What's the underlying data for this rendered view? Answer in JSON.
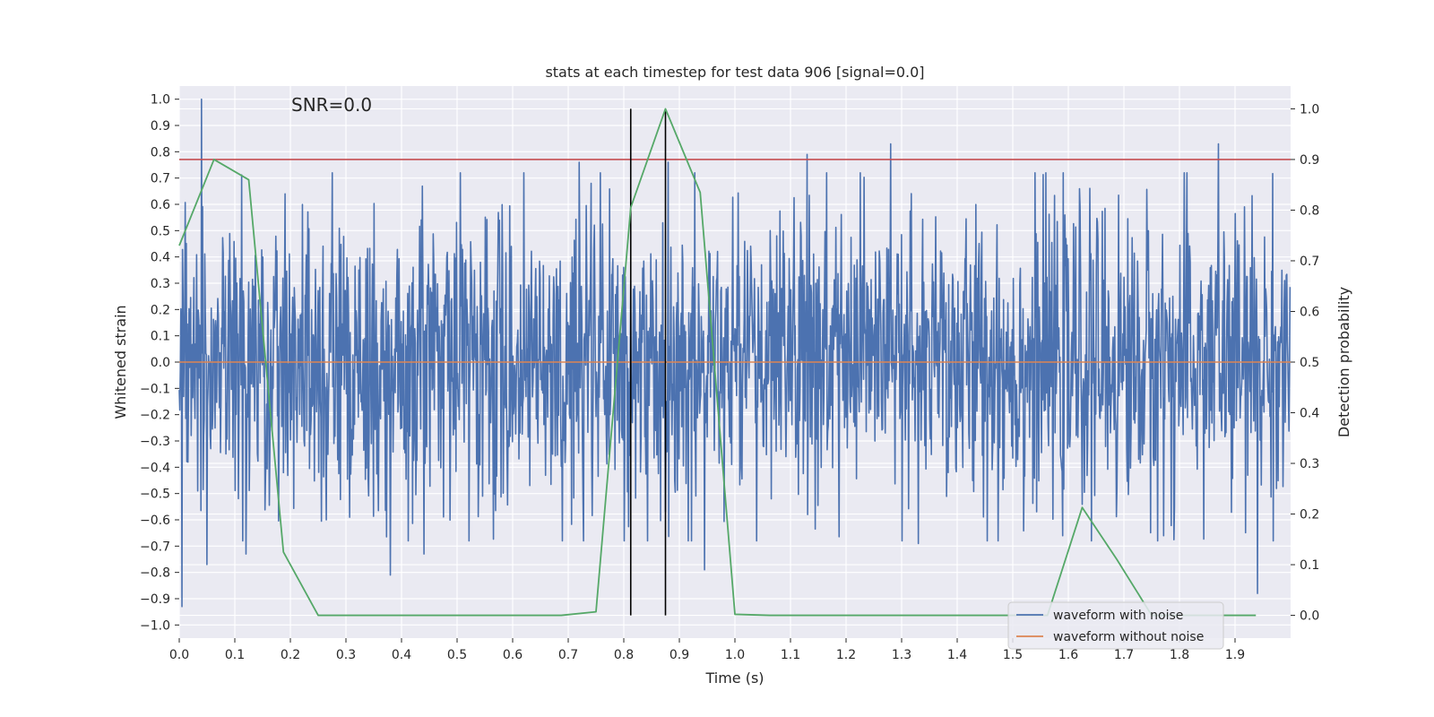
{
  "chart_data": {
    "type": "line",
    "title": "stats at each timestep for test data 906 [signal=0.0]",
    "annotation": "SNR=0.0",
    "xlabel": "Time (s)",
    "ylabel_left": "Whitened strain",
    "ylabel_right": "Detection probability",
    "xlim": [
      0.0,
      2.0
    ],
    "ylim_left": [
      -1.05,
      1.05
    ],
    "ylim_right": [
      -0.045,
      1.045
    ],
    "x_ticks": [
      "0.0",
      "0.1",
      "0.2",
      "0.3",
      "0.4",
      "0.5",
      "0.6",
      "0.7",
      "0.8",
      "0.9",
      "1.0",
      "1.1",
      "1.2",
      "1.3",
      "1.4",
      "1.5",
      "1.6",
      "1.7",
      "1.8",
      "1.9"
    ],
    "left_ticks": [
      "1.0",
      "0.9",
      "0.8",
      "0.7",
      "0.6",
      "0.5",
      "0.4",
      "0.3",
      "0.2",
      "0.1",
      "0.0",
      "−0.1",
      "−0.2",
      "−0.3",
      "−0.4",
      "−0.5",
      "−0.6",
      "−0.7",
      "−0.8",
      "−0.9",
      "−1.0"
    ],
    "right_ticks": [
      "1.0",
      "0.9",
      "0.8",
      "0.7",
      "0.6",
      "0.5",
      "0.4",
      "0.3",
      "0.2",
      "0.1",
      "0.0"
    ],
    "grid": true,
    "legend_position": "bottom-right",
    "series": [
      {
        "name": "waveform with noise",
        "color": "#4c72b0",
        "axis": "left",
        "style": "noise",
        "samples": 2048,
        "amplitude_std": 0.28,
        "peaks": [
          [
            0.04,
            1.0
          ],
          [
            0.005,
            -0.93
          ],
          [
            0.05,
            -0.77
          ],
          [
            0.12,
            -0.73
          ],
          [
            0.19,
            0.64
          ],
          [
            0.38,
            -0.81
          ],
          [
            0.44,
            -0.73
          ],
          [
            0.72,
            0.76
          ],
          [
            0.88,
            0.76
          ],
          [
            0.945,
            -0.79
          ],
          [
            1.13,
            0.79
          ],
          [
            1.28,
            0.83
          ],
          [
            1.33,
            -0.69
          ],
          [
            1.87,
            0.83
          ],
          [
            1.94,
            -0.88
          ]
        ]
      },
      {
        "name": "waveform without noise",
        "color": "#dd8452",
        "axis": "left",
        "values": [
          0.0,
          0.0
        ]
      },
      {
        "name": "",
        "color": "#55a868",
        "axis": "right",
        "x": [
          0.0,
          0.0625,
          0.125,
          0.1875,
          0.25,
          0.3125,
          0.375,
          0.4375,
          0.5,
          0.5625,
          0.625,
          0.6875,
          0.75,
          0.8125,
          0.875,
          0.9375,
          1.0,
          1.0625,
          1.125,
          1.1875,
          1.25,
          1.3125,
          1.375,
          1.4375,
          1.5,
          1.5625,
          1.625,
          1.6875,
          1.75,
          1.8125,
          1.875,
          1.9375
        ],
        "values": [
          0.73,
          0.9,
          0.86,
          0.125,
          0.0,
          0.0,
          0.0,
          0.0,
          0.0,
          0.0,
          0.0,
          0.0,
          0.007,
          0.805,
          1.0,
          0.835,
          0.002,
          0.0,
          0.0,
          0.0,
          0.0,
          0.0,
          0.0,
          0.0,
          0.0,
          0.0,
          0.213,
          0.11,
          0.0,
          0.0,
          0.0,
          0.0
        ]
      }
    ],
    "threshold": {
      "color": "#c44e52",
      "axis": "right",
      "value": 0.9
    },
    "vertical_markers": {
      "color": "#000000",
      "x": [
        0.8125,
        0.875
      ]
    }
  }
}
